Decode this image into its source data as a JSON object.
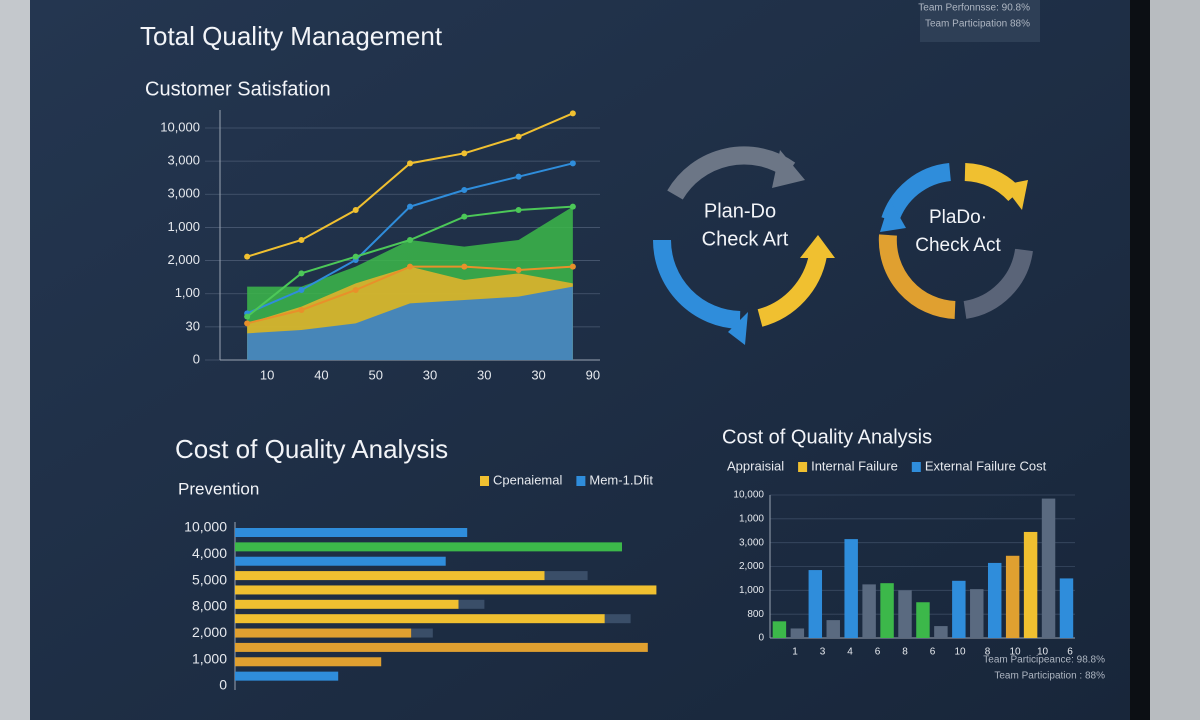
{
  "header": {
    "title": "Total Quality Management",
    "status": [
      "Team Perfonnsse: 90.8%",
      "Team Participation 88%"
    ]
  },
  "cycles": [
    {
      "label": [
        "Plan-Do",
        "Check Art"
      ]
    },
    {
      "label": [
        "PlaDo·",
        "Check Act"
      ]
    }
  ],
  "chart_data": [
    {
      "type": "line",
      "title": "Customer Satisfation",
      "categories": [
        "10",
        "40",
        "50",
        "30",
        "30",
        "30",
        "90"
      ],
      "y_labels": [
        "10,000",
        "3,000",
        "3,000",
        "1,000",
        "2,000",
        "1,00",
        "30",
        "0"
      ],
      "ylim": [
        0,
        7.5
      ],
      "areas": [
        {
          "color": "#3cb84a",
          "values": [
            2.2,
            2.2,
            2.8,
            3.6,
            3.4,
            3.6,
            4.6
          ]
        },
        {
          "color": "#e8b42a",
          "values": [
            1.1,
            1.6,
            2.3,
            2.8,
            2.4,
            2.6,
            2.3
          ]
        },
        {
          "color": "#2f7fd0",
          "values": [
            0.8,
            0.9,
            1.1,
            1.7,
            1.8,
            1.9,
            2.2
          ]
        }
      ],
      "series": [
        {
          "color": "#f0c030",
          "values": [
            3.1,
            3.6,
            4.5,
            5.9,
            6.2,
            6.7,
            7.4
          ]
        },
        {
          "color": "#2f8ddb",
          "values": [
            1.4,
            2.1,
            3.0,
            4.6,
            5.1,
            5.5,
            5.9
          ]
        },
        {
          "color": "#4cc858",
          "values": [
            1.3,
            2.6,
            3.1,
            3.6,
            4.3,
            4.5,
            4.6
          ]
        },
        {
          "color": "#e8902a",
          "values": [
            1.1,
            1.5,
            2.1,
            2.8,
            2.8,
            2.7,
            2.8
          ]
        }
      ]
    },
    {
      "type": "hbar",
      "title": "Cost of Quality Analysis",
      "subtitle": "Prevention",
      "legend": [
        {
          "name": "Cpenaiemal",
          "color": "#f0c030"
        },
        {
          "name": "Mem-1.Dfit",
          "color": "#2f8ddb"
        }
      ],
      "y_labels": [
        "10,000",
        "4,000",
        "5,000",
        "8,000",
        "2,000",
        "1,000",
        "0"
      ],
      "xlim": [
        0,
        100
      ],
      "extra_color": "#3a4e68",
      "bars": [
        {
          "color": "#2f8ddb",
          "value": 54
        },
        {
          "color": "#3cb84a",
          "value": 90
        },
        {
          "color": "#2f8ddb",
          "value": 49
        },
        {
          "color": "#f0c030",
          "value": 72,
          "extra": 10
        },
        {
          "color": "#f0c030",
          "value": 98
        },
        {
          "color": "#f0c030",
          "value": 52,
          "extra": 6
        },
        {
          "color": "#f0c030",
          "value": 86,
          "extra": 6
        },
        {
          "color": "#e0a030",
          "value": 41,
          "extra": 5
        },
        {
          "color": "#e0a030",
          "value": 96
        },
        {
          "color": "#e0a030",
          "value": 34
        },
        {
          "color": "#2f8ddb",
          "value": 24
        }
      ]
    },
    {
      "type": "bar",
      "title": "Cost of Quality Analysis",
      "legend": [
        {
          "name": "Appraisial"
        },
        {
          "name": "Internal Failure",
          "color": "#f0c030"
        },
        {
          "name": "External Failure Cost",
          "color": "#2f8ddb"
        }
      ],
      "y_labels": [
        "10,000",
        "1,000",
        "3,000",
        "2,000",
        "1,000",
        "800",
        "0"
      ],
      "categories": [
        "1",
        "3",
        "4",
        "6",
        "8",
        "6",
        "10",
        "8",
        "10",
        "10",
        "6"
      ],
      "ylim": [
        0,
        120
      ],
      "bars": [
        {
          "color": "#3cb84a",
          "value": 14
        },
        {
          "color": "#5a6a80",
          "value": 8
        },
        {
          "color": "#2f8ddb",
          "value": 57
        },
        {
          "color": "#5a6a80",
          "value": 15
        },
        {
          "color": "#2f8ddb",
          "value": 83
        },
        {
          "color": "#5a6a80",
          "value": 45
        },
        {
          "color": "#3cb84a",
          "value": 46
        },
        {
          "color": "#5a6a80",
          "value": 40
        },
        {
          "color": "#3cb84a",
          "value": 30
        },
        {
          "color": "#5a6a80",
          "value": 10
        },
        {
          "color": "#2f8ddb",
          "value": 48
        },
        {
          "color": "#5a6a80",
          "value": 41
        },
        {
          "color": "#2f8ddb",
          "value": 63
        },
        {
          "color": "#e0a030",
          "value": 69
        },
        {
          "color": "#f0c030",
          "value": 89
        },
        {
          "color": "#5a6a80",
          "value": 117
        },
        {
          "color": "#2f8ddb",
          "value": 50
        }
      ]
    }
  ],
  "footer": {
    "status": [
      "Team Participeance: 98.8%",
      "Team Participation : 88%"
    ]
  }
}
